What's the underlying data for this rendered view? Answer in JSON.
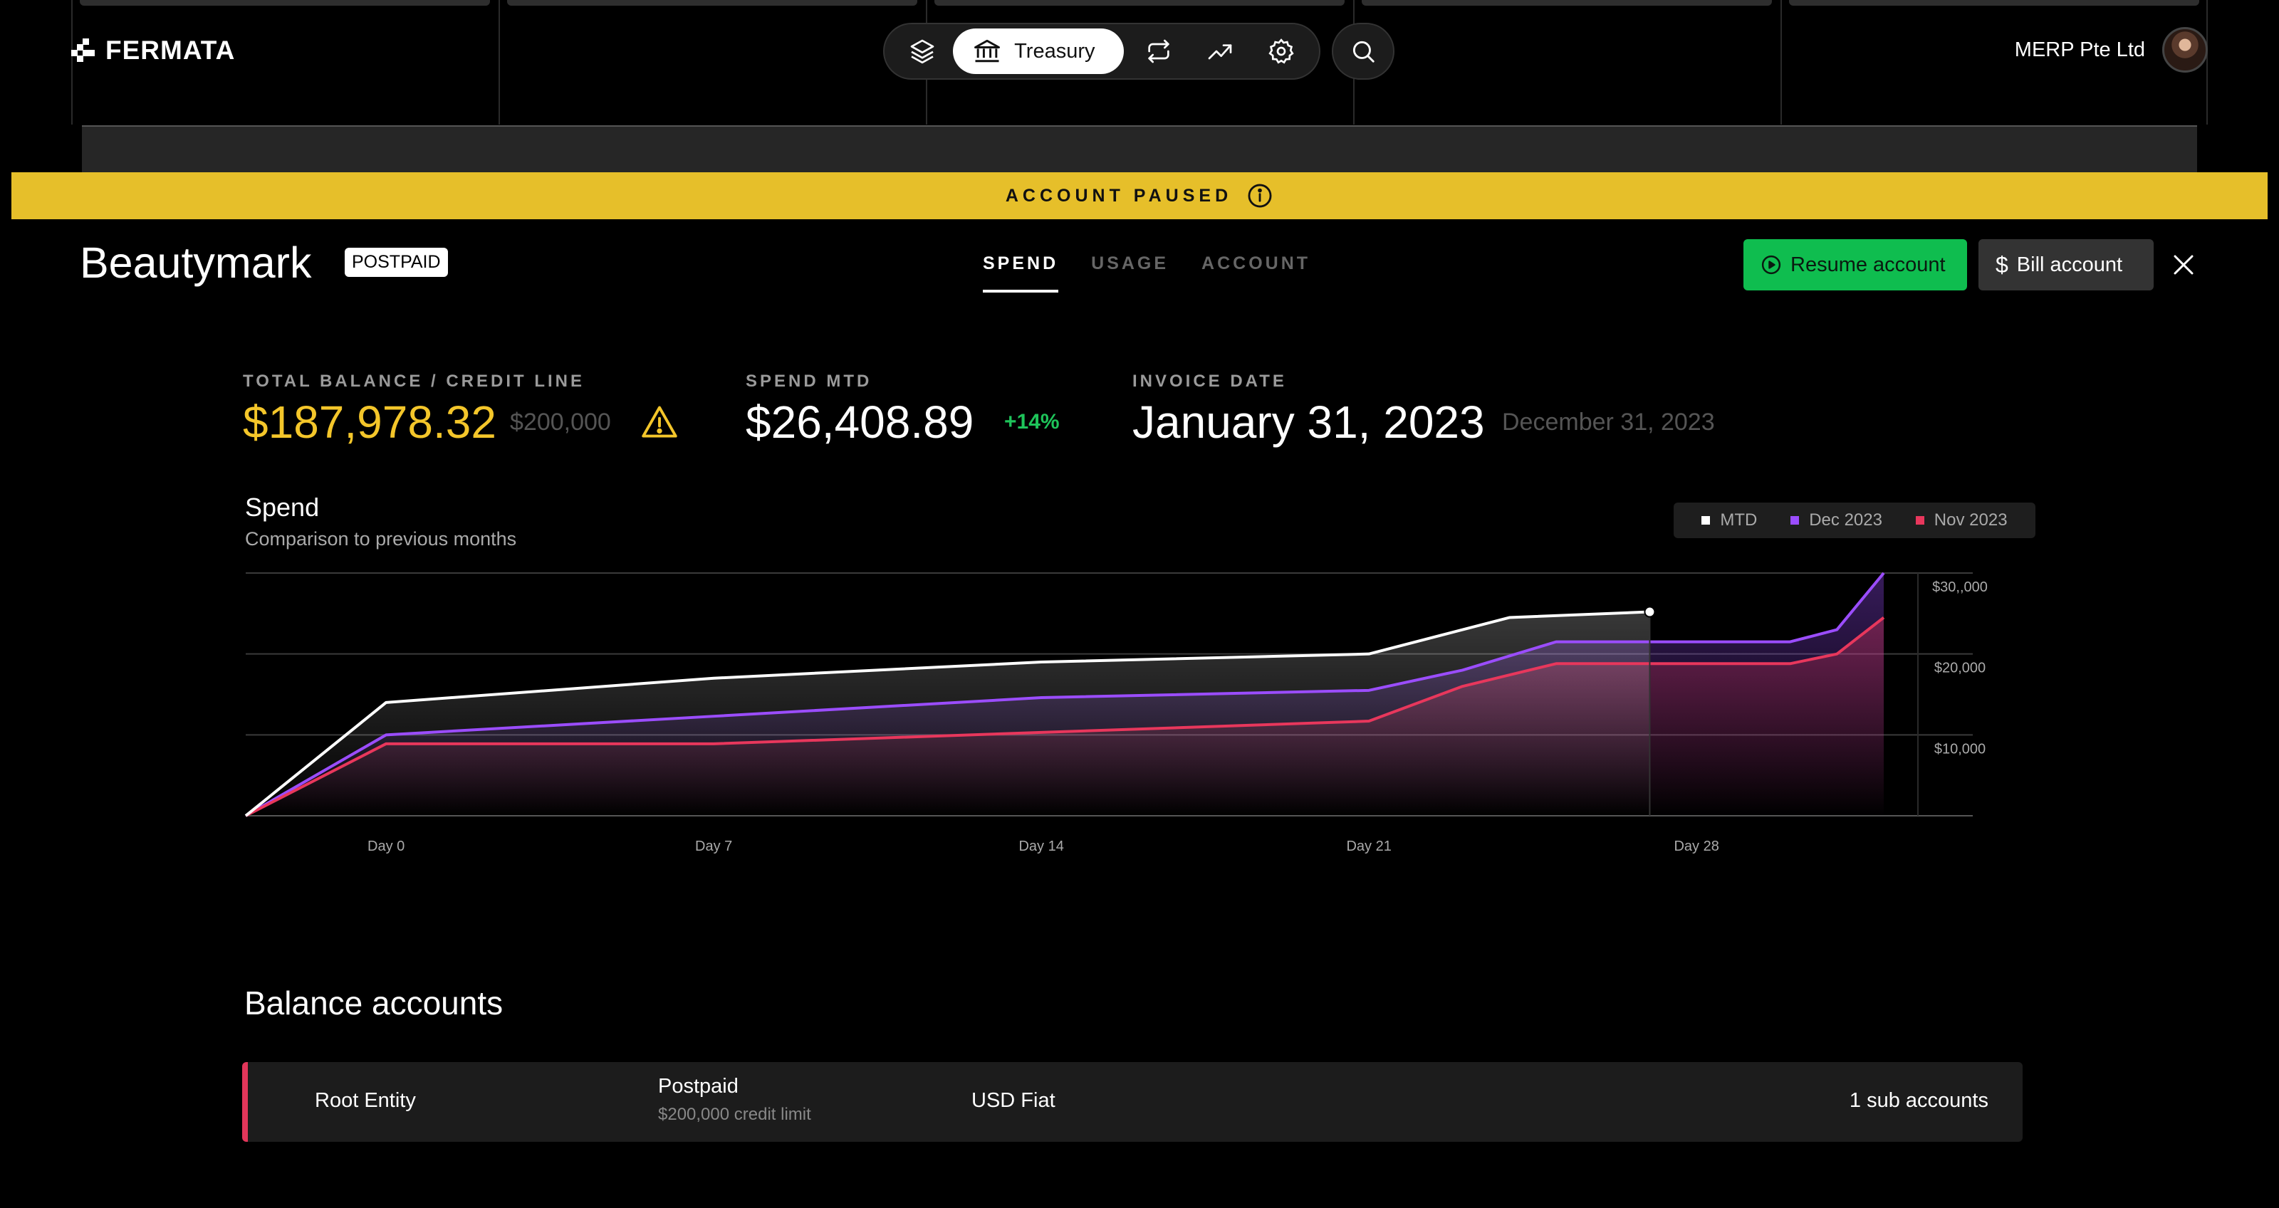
{
  "brand": {
    "name": "FERMATA"
  },
  "nav": {
    "active_label": "Treasury",
    "icons": [
      "layers-icon",
      "bank-icon",
      "transfer-icon",
      "trending-icon",
      "gear-icon",
      "search-icon"
    ]
  },
  "org": {
    "name": "MERP Pte Ltd"
  },
  "banner": {
    "text": "ACCOUNT PAUSED"
  },
  "account": {
    "name": "Beautymark",
    "badge": "POSTPAID",
    "tabs": [
      "SPEND",
      "USAGE",
      "ACCOUNT"
    ],
    "active_tab": "SPEND",
    "resume_label": "Resume account",
    "bill_label": "Bill account"
  },
  "stats": {
    "balance_label": "TOTAL BALANCE / CREDIT LINE",
    "balance_value": "$187,978.32",
    "credit_line": "$200,000",
    "spend_label": "SPEND MTD",
    "spend_value": "$26,408.89",
    "spend_change": "+14%",
    "invoice_label": "INVOICE DATE",
    "invoice_value": "January 31, 2023",
    "invoice_prev": "December 31, 2023"
  },
  "colors": {
    "accent_yellow": "#e6bf2a",
    "green": "#0fbd4f",
    "mtd": "#ffffff",
    "dec": "#9b4dff",
    "nov": "#e8375c"
  },
  "chart_data": {
    "type": "line",
    "title": "Spend",
    "subtitle": "Comparison to previous months",
    "x_tick_labels": [
      "Day 0",
      "Day 7",
      "Day 14",
      "Day 21",
      "Day 28"
    ],
    "y_tick_labels": [
      "$10,000",
      "$20,000",
      "$30,,000"
    ],
    "ylim": [
      0,
      30000
    ],
    "xlim": [
      -3,
      32
    ],
    "legend_position": "top-right",
    "series": [
      {
        "name": "MTD",
        "color": "#ffffff",
        "x": [
          -3,
          0,
          7,
          14,
          21,
          24,
          27
        ],
        "y": [
          0,
          14000,
          17000,
          19000,
          20000,
          24500,
          25200
        ]
      },
      {
        "name": "Dec 2023",
        "color": "#9b4dff",
        "x": [
          -3,
          0,
          7,
          14,
          21,
          23,
          25,
          30,
          31,
          32
        ],
        "y": [
          0,
          10000,
          12300,
          14600,
          15500,
          18000,
          21500,
          21500,
          23000,
          30000
        ]
      },
      {
        "name": "Nov 2023",
        "color": "#e8375c",
        "x": [
          -3,
          0,
          7,
          14,
          21,
          23,
          25,
          30,
          31,
          32
        ],
        "y": [
          0,
          8900,
          8900,
          10300,
          11700,
          16000,
          18800,
          18800,
          20000,
          24500
        ]
      }
    ]
  },
  "balance_accounts": {
    "title": "Balance accounts",
    "rows": [
      {
        "entity": "Root Entity",
        "type": "Postpaid",
        "limit": "$200,000 credit limit",
        "currency": "USD Fiat",
        "subs": "1 sub accounts"
      }
    ]
  }
}
